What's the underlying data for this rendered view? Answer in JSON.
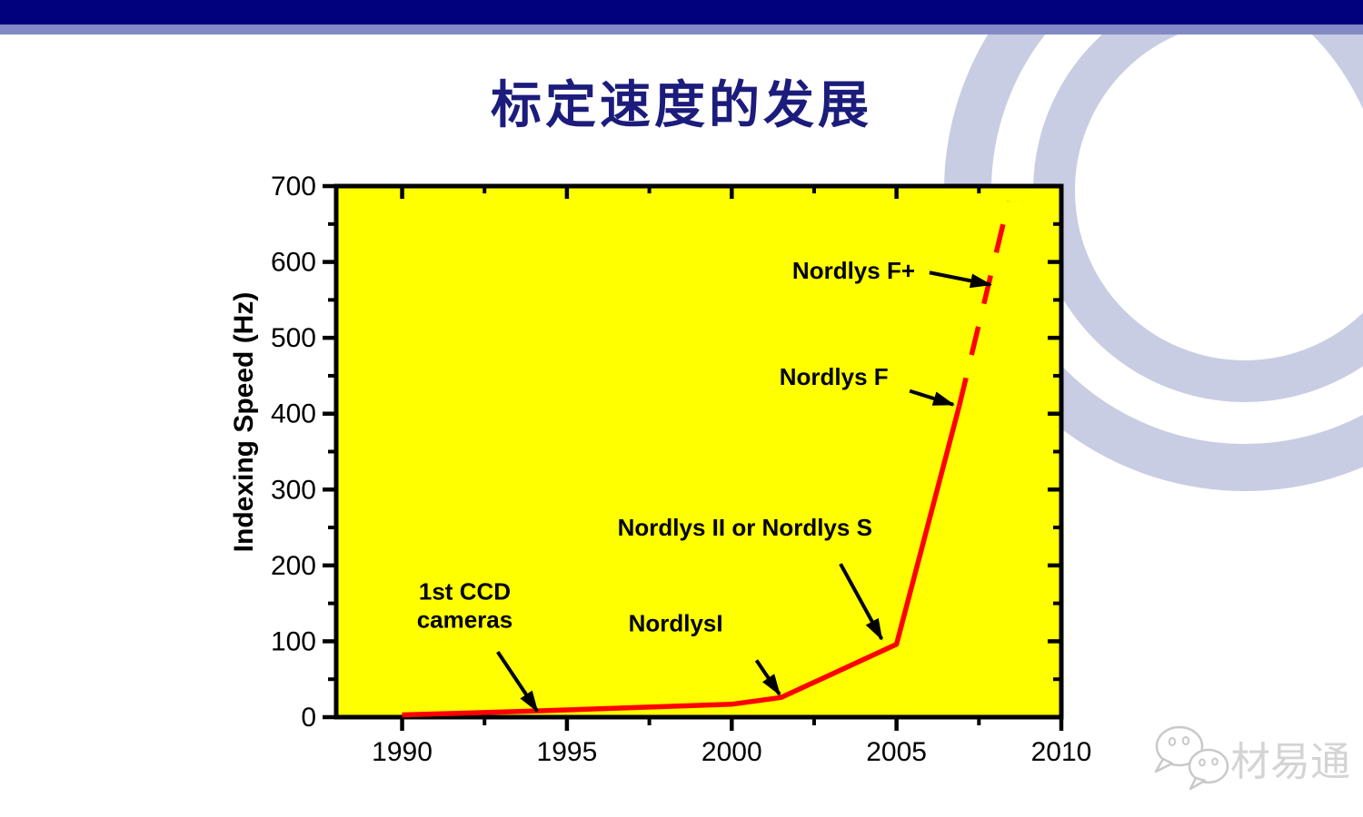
{
  "slide": {
    "title": "标定速度的发展"
  },
  "colors": {
    "header_bar_dark": "#01017e",
    "header_bar_light": "#8289c4",
    "title_text": "#1c1c7c",
    "plot_background": "#ffff00",
    "data_line": "#ff0000",
    "axis": "#000000",
    "annotation_text": "#000000",
    "decoration_rings": "#c9cde3",
    "watermark_text": "#d4d4d4"
  },
  "watermark": {
    "icon": "wechat-chat-bubbles-icon",
    "text": "材易通"
  },
  "chart_data": {
    "type": "line",
    "title": "",
    "xlabel": "",
    "ylabel": "Indexing Speed (Hz)",
    "xlim": [
      1988,
      2010
    ],
    "ylim": [
      0,
      700
    ],
    "x_major_ticks": [
      1990,
      1995,
      2000,
      2005,
      2010
    ],
    "x_minor_tick_step": 2.5,
    "y_major_tick_step": 100,
    "y_minor_tick_step": 50,
    "grid": false,
    "legend": "none",
    "line_color": "#ff0000",
    "plot_background": "#ffff00",
    "series": [
      {
        "name": "indexing-speed",
        "style": "solid",
        "points": [
          [
            1990,
            3
          ],
          [
            1994,
            8
          ],
          [
            2000,
            17
          ],
          [
            2001.5,
            26
          ],
          [
            2005,
            96
          ],
          [
            2006.9,
            410
          ]
        ]
      },
      {
        "name": "indexing-speed-projection",
        "style": "dashed",
        "points": [
          [
            2006.9,
            410
          ],
          [
            2008.4,
            680
          ]
        ]
      }
    ],
    "annotations": [
      {
        "label_lines": [
          "1st CCD",
          "cameras"
        ],
        "text_at": [
          1991.9,
          147
        ],
        "arrow_from": [
          1992.9,
          86
        ],
        "arrow_to": [
          1994.1,
          8
        ]
      },
      {
        "label_lines": [
          "NordlysI"
        ],
        "text_at": [
          1998.3,
          124
        ],
        "arrow_from": [
          2000.75,
          75
        ],
        "arrow_to": [
          2001.45,
          30
        ]
      },
      {
        "label_lines": [
          "Nordlys II or Nordlys S"
        ],
        "text_at": [
          2000.4,
          250
        ],
        "arrow_from": [
          2003.3,
          202
        ],
        "arrow_to": [
          2004.55,
          103
        ]
      },
      {
        "label_lines": [
          "Nordlys F"
        ],
        "text_at": [
          2003.1,
          449
        ],
        "arrow_from": [
          2005.4,
          430
        ],
        "arrow_to": [
          2006.72,
          412
        ]
      },
      {
        "label_lines": [
          "Nordlys F+"
        ],
        "text_at": [
          2003.7,
          589
        ],
        "arrow_from": [
          2006.0,
          586
        ],
        "arrow_to": [
          2007.85,
          570
        ]
      }
    ]
  }
}
